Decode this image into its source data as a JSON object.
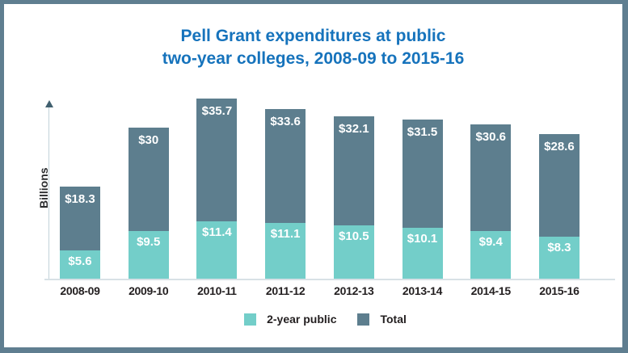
{
  "title": {
    "line1": "Pell Grant expenditures at public",
    "line2": "two-year colleges, 2008-09 to 2015-16"
  },
  "y_axis_label": "Billions",
  "colors": {
    "title_blue": "#1673bc",
    "total_bar": "#5d7e8e",
    "two_year_bar": "#73cec9",
    "frame_border": "#5f7e90",
    "axis_line": "#c2d3da",
    "baseline": "#d8e1e6",
    "value_label_text": "#ffffff",
    "dark_text": "#231f20"
  },
  "chart_data": {
    "type": "bar",
    "stacked": true,
    "title": "Pell Grant expenditures at public two-year colleges, 2008-09 to 2015-16",
    "categories": [
      "2008-09",
      "2009-10",
      "2010-11",
      "2011-12",
      "2012-13",
      "2013-14",
      "2014-15",
      "2015-16"
    ],
    "series": [
      {
        "name": "2-year public",
        "color": "#73cec9",
        "values": [
          5.6,
          9.5,
          11.4,
          11.1,
          10.5,
          10.1,
          9.4,
          8.3
        ],
        "labels": [
          "$5.6",
          "$9.5",
          "$11.4",
          "$11.1",
          "$10.5",
          "$10.1",
          "$9.4",
          "$8.3"
        ]
      },
      {
        "name": "Total",
        "color": "#5d7e8e",
        "values": [
          18.3,
          30,
          35.7,
          33.6,
          32.1,
          31.5,
          30.6,
          28.6
        ],
        "labels": [
          "$18.3",
          "$30",
          "$35.7",
          "$33.6",
          "$32.1",
          "$31.5",
          "$30.6",
          "$28.6"
        ]
      }
    ],
    "xlabel": "",
    "ylabel": "Billions",
    "ylim": [
      0,
      38
    ],
    "grid": false,
    "legend_position": "bottom"
  },
  "legend": [
    {
      "label": "2-year public",
      "color": "#73cec9"
    },
    {
      "label": "Total",
      "color": "#5d7e8e"
    }
  ]
}
